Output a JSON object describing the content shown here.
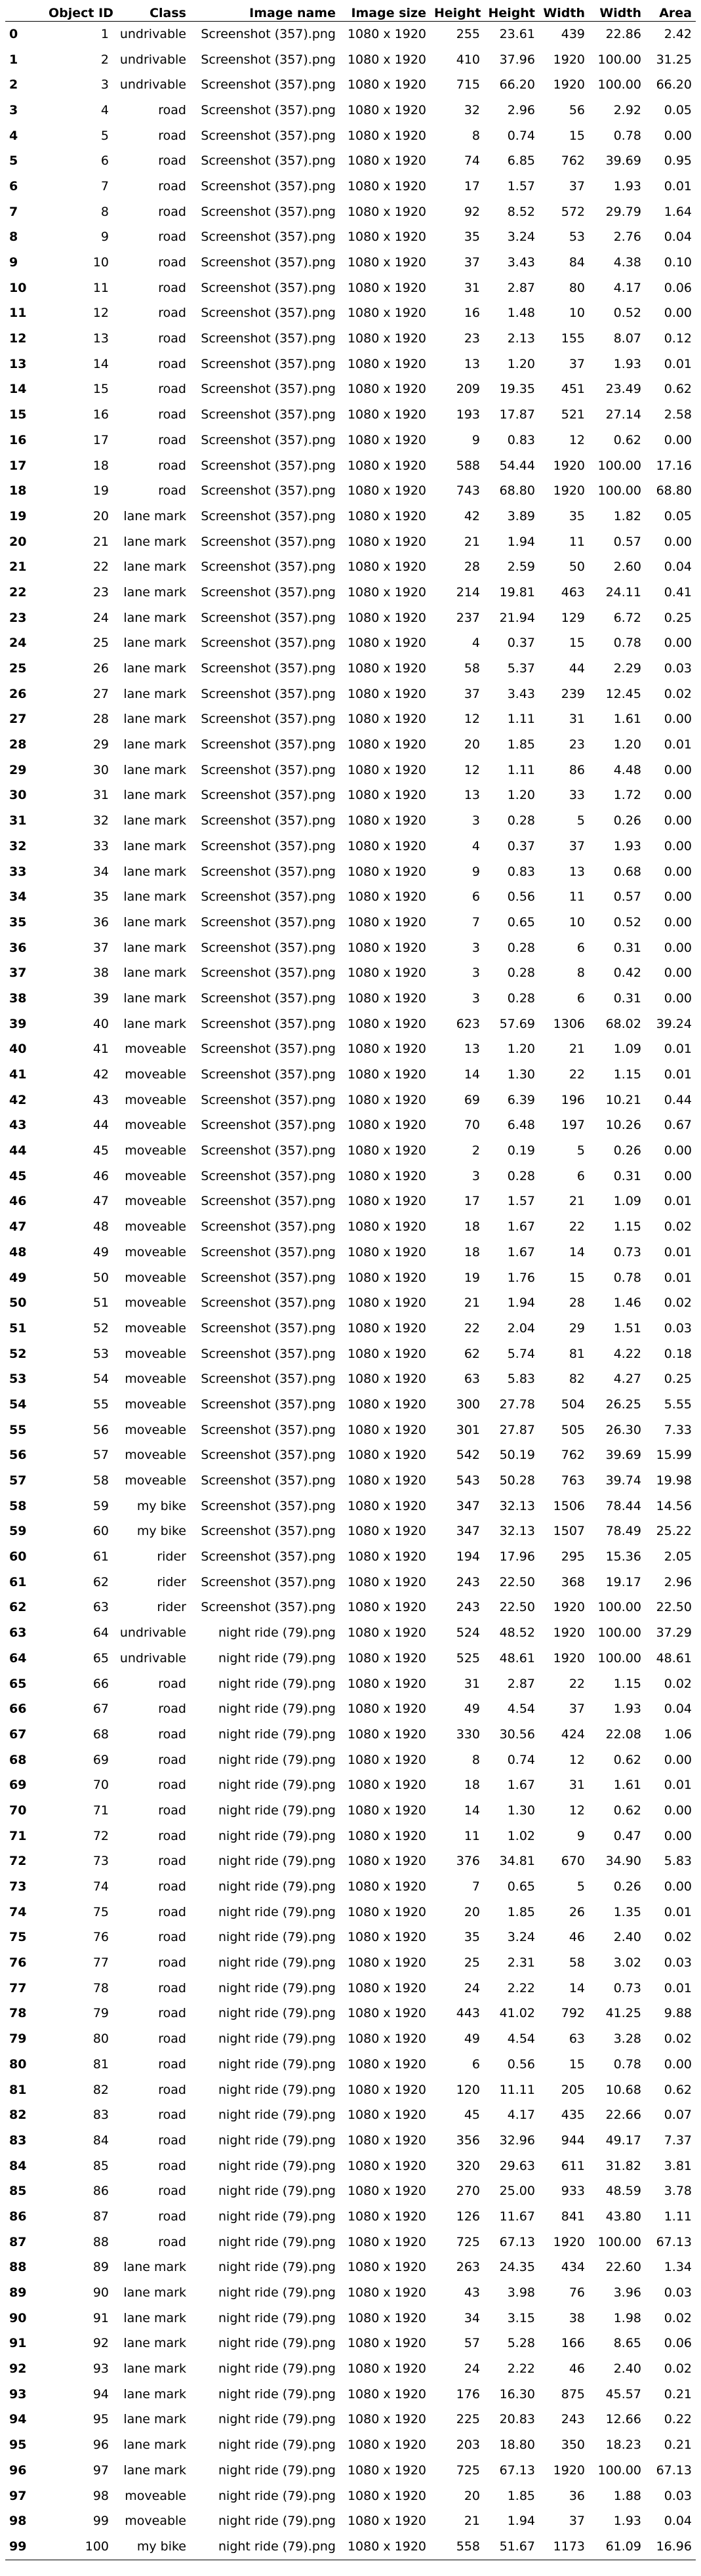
{
  "table": {
    "columns": [
      "",
      "Object ID",
      "Class",
      "Image name",
      "Image size",
      "Height",
      "Height",
      "Width",
      "Width",
      "Area"
    ],
    "rows": [
      [
        "0",
        "1",
        "undrivable",
        "Screenshot (357).png",
        "1080 x 1920",
        "255",
        "23.61",
        "439",
        "22.86",
        "2.42"
      ],
      [
        "1",
        "2",
        "undrivable",
        "Screenshot (357).png",
        "1080 x 1920",
        "410",
        "37.96",
        "1920",
        "100.00",
        "31.25"
      ],
      [
        "2",
        "3",
        "undrivable",
        "Screenshot (357).png",
        "1080 x 1920",
        "715",
        "66.20",
        "1920",
        "100.00",
        "66.20"
      ],
      [
        "3",
        "4",
        "road",
        "Screenshot (357).png",
        "1080 x 1920",
        "32",
        "2.96",
        "56",
        "2.92",
        "0.05"
      ],
      [
        "4",
        "5",
        "road",
        "Screenshot (357).png",
        "1080 x 1920",
        "8",
        "0.74",
        "15",
        "0.78",
        "0.00"
      ],
      [
        "5",
        "6",
        "road",
        "Screenshot (357).png",
        "1080 x 1920",
        "74",
        "6.85",
        "762",
        "39.69",
        "0.95"
      ],
      [
        "6",
        "7",
        "road",
        "Screenshot (357).png",
        "1080 x 1920",
        "17",
        "1.57",
        "37",
        "1.93",
        "0.01"
      ],
      [
        "7",
        "8",
        "road",
        "Screenshot (357).png",
        "1080 x 1920",
        "92",
        "8.52",
        "572",
        "29.79",
        "1.64"
      ],
      [
        "8",
        "9",
        "road",
        "Screenshot (357).png",
        "1080 x 1920",
        "35",
        "3.24",
        "53",
        "2.76",
        "0.04"
      ],
      [
        "9",
        "10",
        "road",
        "Screenshot (357).png",
        "1080 x 1920",
        "37",
        "3.43",
        "84",
        "4.38",
        "0.10"
      ],
      [
        "10",
        "11",
        "road",
        "Screenshot (357).png",
        "1080 x 1920",
        "31",
        "2.87",
        "80",
        "4.17",
        "0.06"
      ],
      [
        "11",
        "12",
        "road",
        "Screenshot (357).png",
        "1080 x 1920",
        "16",
        "1.48",
        "10",
        "0.52",
        "0.00"
      ],
      [
        "12",
        "13",
        "road",
        "Screenshot (357).png",
        "1080 x 1920",
        "23",
        "2.13",
        "155",
        "8.07",
        "0.12"
      ],
      [
        "13",
        "14",
        "road",
        "Screenshot (357).png",
        "1080 x 1920",
        "13",
        "1.20",
        "37",
        "1.93",
        "0.01"
      ],
      [
        "14",
        "15",
        "road",
        "Screenshot (357).png",
        "1080 x 1920",
        "209",
        "19.35",
        "451",
        "23.49",
        "0.62"
      ],
      [
        "15",
        "16",
        "road",
        "Screenshot (357).png",
        "1080 x 1920",
        "193",
        "17.87",
        "521",
        "27.14",
        "2.58"
      ],
      [
        "16",
        "17",
        "road",
        "Screenshot (357).png",
        "1080 x 1920",
        "9",
        "0.83",
        "12",
        "0.62",
        "0.00"
      ],
      [
        "17",
        "18",
        "road",
        "Screenshot (357).png",
        "1080 x 1920",
        "588",
        "54.44",
        "1920",
        "100.00",
        "17.16"
      ],
      [
        "18",
        "19",
        "road",
        "Screenshot (357).png",
        "1080 x 1920",
        "743",
        "68.80",
        "1920",
        "100.00",
        "68.80"
      ],
      [
        "19",
        "20",
        "lane mark",
        "Screenshot (357).png",
        "1080 x 1920",
        "42",
        "3.89",
        "35",
        "1.82",
        "0.05"
      ],
      [
        "20",
        "21",
        "lane mark",
        "Screenshot (357).png",
        "1080 x 1920",
        "21",
        "1.94",
        "11",
        "0.57",
        "0.00"
      ],
      [
        "21",
        "22",
        "lane mark",
        "Screenshot (357).png",
        "1080 x 1920",
        "28",
        "2.59",
        "50",
        "2.60",
        "0.04"
      ],
      [
        "22",
        "23",
        "lane mark",
        "Screenshot (357).png",
        "1080 x 1920",
        "214",
        "19.81",
        "463",
        "24.11",
        "0.41"
      ],
      [
        "23",
        "24",
        "lane mark",
        "Screenshot (357).png",
        "1080 x 1920",
        "237",
        "21.94",
        "129",
        "6.72",
        "0.25"
      ],
      [
        "24",
        "25",
        "lane mark",
        "Screenshot (357).png",
        "1080 x 1920",
        "4",
        "0.37",
        "15",
        "0.78",
        "0.00"
      ],
      [
        "25",
        "26",
        "lane mark",
        "Screenshot (357).png",
        "1080 x 1920",
        "58",
        "5.37",
        "44",
        "2.29",
        "0.03"
      ],
      [
        "26",
        "27",
        "lane mark",
        "Screenshot (357).png",
        "1080 x 1920",
        "37",
        "3.43",
        "239",
        "12.45",
        "0.02"
      ],
      [
        "27",
        "28",
        "lane mark",
        "Screenshot (357).png",
        "1080 x 1920",
        "12",
        "1.11",
        "31",
        "1.61",
        "0.00"
      ],
      [
        "28",
        "29",
        "lane mark",
        "Screenshot (357).png",
        "1080 x 1920",
        "20",
        "1.85",
        "23",
        "1.20",
        "0.01"
      ],
      [
        "29",
        "30",
        "lane mark",
        "Screenshot (357).png",
        "1080 x 1920",
        "12",
        "1.11",
        "86",
        "4.48",
        "0.00"
      ],
      [
        "30",
        "31",
        "lane mark",
        "Screenshot (357).png",
        "1080 x 1920",
        "13",
        "1.20",
        "33",
        "1.72",
        "0.00"
      ],
      [
        "31",
        "32",
        "lane mark",
        "Screenshot (357).png",
        "1080 x 1920",
        "3",
        "0.28",
        "5",
        "0.26",
        "0.00"
      ],
      [
        "32",
        "33",
        "lane mark",
        "Screenshot (357).png",
        "1080 x 1920",
        "4",
        "0.37",
        "37",
        "1.93",
        "0.00"
      ],
      [
        "33",
        "34",
        "lane mark",
        "Screenshot (357).png",
        "1080 x 1920",
        "9",
        "0.83",
        "13",
        "0.68",
        "0.00"
      ],
      [
        "34",
        "35",
        "lane mark",
        "Screenshot (357).png",
        "1080 x 1920",
        "6",
        "0.56",
        "11",
        "0.57",
        "0.00"
      ],
      [
        "35",
        "36",
        "lane mark",
        "Screenshot (357).png",
        "1080 x 1920",
        "7",
        "0.65",
        "10",
        "0.52",
        "0.00"
      ],
      [
        "36",
        "37",
        "lane mark",
        "Screenshot (357).png",
        "1080 x 1920",
        "3",
        "0.28",
        "6",
        "0.31",
        "0.00"
      ],
      [
        "37",
        "38",
        "lane mark",
        "Screenshot (357).png",
        "1080 x 1920",
        "3",
        "0.28",
        "8",
        "0.42",
        "0.00"
      ],
      [
        "38",
        "39",
        "lane mark",
        "Screenshot (357).png",
        "1080 x 1920",
        "3",
        "0.28",
        "6",
        "0.31",
        "0.00"
      ],
      [
        "39",
        "40",
        "lane mark",
        "Screenshot (357).png",
        "1080 x 1920",
        "623",
        "57.69",
        "1306",
        "68.02",
        "39.24"
      ],
      [
        "40",
        "41",
        "moveable",
        "Screenshot (357).png",
        "1080 x 1920",
        "13",
        "1.20",
        "21",
        "1.09",
        "0.01"
      ],
      [
        "41",
        "42",
        "moveable",
        "Screenshot (357).png",
        "1080 x 1920",
        "14",
        "1.30",
        "22",
        "1.15",
        "0.01"
      ],
      [
        "42",
        "43",
        "moveable",
        "Screenshot (357).png",
        "1080 x 1920",
        "69",
        "6.39",
        "196",
        "10.21",
        "0.44"
      ],
      [
        "43",
        "44",
        "moveable",
        "Screenshot (357).png",
        "1080 x 1920",
        "70",
        "6.48",
        "197",
        "10.26",
        "0.67"
      ],
      [
        "44",
        "45",
        "moveable",
        "Screenshot (357).png",
        "1080 x 1920",
        "2",
        "0.19",
        "5",
        "0.26",
        "0.00"
      ],
      [
        "45",
        "46",
        "moveable",
        "Screenshot (357).png",
        "1080 x 1920",
        "3",
        "0.28",
        "6",
        "0.31",
        "0.00"
      ],
      [
        "46",
        "47",
        "moveable",
        "Screenshot (357).png",
        "1080 x 1920",
        "17",
        "1.57",
        "21",
        "1.09",
        "0.01"
      ],
      [
        "47",
        "48",
        "moveable",
        "Screenshot (357).png",
        "1080 x 1920",
        "18",
        "1.67",
        "22",
        "1.15",
        "0.02"
      ],
      [
        "48",
        "49",
        "moveable",
        "Screenshot (357).png",
        "1080 x 1920",
        "18",
        "1.67",
        "14",
        "0.73",
        "0.01"
      ],
      [
        "49",
        "50",
        "moveable",
        "Screenshot (357).png",
        "1080 x 1920",
        "19",
        "1.76",
        "15",
        "0.78",
        "0.01"
      ],
      [
        "50",
        "51",
        "moveable",
        "Screenshot (357).png",
        "1080 x 1920",
        "21",
        "1.94",
        "28",
        "1.46",
        "0.02"
      ],
      [
        "51",
        "52",
        "moveable",
        "Screenshot (357).png",
        "1080 x 1920",
        "22",
        "2.04",
        "29",
        "1.51",
        "0.03"
      ],
      [
        "52",
        "53",
        "moveable",
        "Screenshot (357).png",
        "1080 x 1920",
        "62",
        "5.74",
        "81",
        "4.22",
        "0.18"
      ],
      [
        "53",
        "54",
        "moveable",
        "Screenshot (357).png",
        "1080 x 1920",
        "63",
        "5.83",
        "82",
        "4.27",
        "0.25"
      ],
      [
        "54",
        "55",
        "moveable",
        "Screenshot (357).png",
        "1080 x 1920",
        "300",
        "27.78",
        "504",
        "26.25",
        "5.55"
      ],
      [
        "55",
        "56",
        "moveable",
        "Screenshot (357).png",
        "1080 x 1920",
        "301",
        "27.87",
        "505",
        "26.30",
        "7.33"
      ],
      [
        "56",
        "57",
        "moveable",
        "Screenshot (357).png",
        "1080 x 1920",
        "542",
        "50.19",
        "762",
        "39.69",
        "15.99"
      ],
      [
        "57",
        "58",
        "moveable",
        "Screenshot (357).png",
        "1080 x 1920",
        "543",
        "50.28",
        "763",
        "39.74",
        "19.98"
      ],
      [
        "58",
        "59",
        "my bike",
        "Screenshot (357).png",
        "1080 x 1920",
        "347",
        "32.13",
        "1506",
        "78.44",
        "14.56"
      ],
      [
        "59",
        "60",
        "my bike",
        "Screenshot (357).png",
        "1080 x 1920",
        "347",
        "32.13",
        "1507",
        "78.49",
        "25.22"
      ],
      [
        "60",
        "61",
        "rider",
        "Screenshot (357).png",
        "1080 x 1920",
        "194",
        "17.96",
        "295",
        "15.36",
        "2.05"
      ],
      [
        "61",
        "62",
        "rider",
        "Screenshot (357).png",
        "1080 x 1920",
        "243",
        "22.50",
        "368",
        "19.17",
        "2.96"
      ],
      [
        "62",
        "63",
        "rider",
        "Screenshot (357).png",
        "1080 x 1920",
        "243",
        "22.50",
        "1920",
        "100.00",
        "22.50"
      ],
      [
        "63",
        "64",
        "undrivable",
        "night ride (79).png",
        "1080 x 1920",
        "524",
        "48.52",
        "1920",
        "100.00",
        "37.29"
      ],
      [
        "64",
        "65",
        "undrivable",
        "night ride (79).png",
        "1080 x 1920",
        "525",
        "48.61",
        "1920",
        "100.00",
        "48.61"
      ],
      [
        "65",
        "66",
        "road",
        "night ride (79).png",
        "1080 x 1920",
        "31",
        "2.87",
        "22",
        "1.15",
        "0.02"
      ],
      [
        "66",
        "67",
        "road",
        "night ride (79).png",
        "1080 x 1920",
        "49",
        "4.54",
        "37",
        "1.93",
        "0.04"
      ],
      [
        "67",
        "68",
        "road",
        "night ride (79).png",
        "1080 x 1920",
        "330",
        "30.56",
        "424",
        "22.08",
        "1.06"
      ],
      [
        "68",
        "69",
        "road",
        "night ride (79).png",
        "1080 x 1920",
        "8",
        "0.74",
        "12",
        "0.62",
        "0.00"
      ],
      [
        "69",
        "70",
        "road",
        "night ride (79).png",
        "1080 x 1920",
        "18",
        "1.67",
        "31",
        "1.61",
        "0.01"
      ],
      [
        "70",
        "71",
        "road",
        "night ride (79).png",
        "1080 x 1920",
        "14",
        "1.30",
        "12",
        "0.62",
        "0.00"
      ],
      [
        "71",
        "72",
        "road",
        "night ride (79).png",
        "1080 x 1920",
        "11",
        "1.02",
        "9",
        "0.47",
        "0.00"
      ],
      [
        "72",
        "73",
        "road",
        "night ride (79).png",
        "1080 x 1920",
        "376",
        "34.81",
        "670",
        "34.90",
        "5.83"
      ],
      [
        "73",
        "74",
        "road",
        "night ride (79).png",
        "1080 x 1920",
        "7",
        "0.65",
        "5",
        "0.26",
        "0.00"
      ],
      [
        "74",
        "75",
        "road",
        "night ride (79).png",
        "1080 x 1920",
        "20",
        "1.85",
        "26",
        "1.35",
        "0.01"
      ],
      [
        "75",
        "76",
        "road",
        "night ride (79).png",
        "1080 x 1920",
        "35",
        "3.24",
        "46",
        "2.40",
        "0.02"
      ],
      [
        "76",
        "77",
        "road",
        "night ride (79).png",
        "1080 x 1920",
        "25",
        "2.31",
        "58",
        "3.02",
        "0.03"
      ],
      [
        "77",
        "78",
        "road",
        "night ride (79).png",
        "1080 x 1920",
        "24",
        "2.22",
        "14",
        "0.73",
        "0.01"
      ],
      [
        "78",
        "79",
        "road",
        "night ride (79).png",
        "1080 x 1920",
        "443",
        "41.02",
        "792",
        "41.25",
        "9.88"
      ],
      [
        "79",
        "80",
        "road",
        "night ride (79).png",
        "1080 x 1920",
        "49",
        "4.54",
        "63",
        "3.28",
        "0.02"
      ],
      [
        "80",
        "81",
        "road",
        "night ride (79).png",
        "1080 x 1920",
        "6",
        "0.56",
        "15",
        "0.78",
        "0.00"
      ],
      [
        "81",
        "82",
        "road",
        "night ride (79).png",
        "1080 x 1920",
        "120",
        "11.11",
        "205",
        "10.68",
        "0.62"
      ],
      [
        "82",
        "83",
        "road",
        "night ride (79).png",
        "1080 x 1920",
        "45",
        "4.17",
        "435",
        "22.66",
        "0.07"
      ],
      [
        "83",
        "84",
        "road",
        "night ride (79).png",
        "1080 x 1920",
        "356",
        "32.96",
        "944",
        "49.17",
        "7.37"
      ],
      [
        "84",
        "85",
        "road",
        "night ride (79).png",
        "1080 x 1920",
        "320",
        "29.63",
        "611",
        "31.82",
        "3.81"
      ],
      [
        "85",
        "86",
        "road",
        "night ride (79).png",
        "1080 x 1920",
        "270",
        "25.00",
        "933",
        "48.59",
        "3.78"
      ],
      [
        "86",
        "87",
        "road",
        "night ride (79).png",
        "1080 x 1920",
        "126",
        "11.67",
        "841",
        "43.80",
        "1.11"
      ],
      [
        "87",
        "88",
        "road",
        "night ride (79).png",
        "1080 x 1920",
        "725",
        "67.13",
        "1920",
        "100.00",
        "67.13"
      ],
      [
        "88",
        "89",
        "lane mark",
        "night ride (79).png",
        "1080 x 1920",
        "263",
        "24.35",
        "434",
        "22.60",
        "1.34"
      ],
      [
        "89",
        "90",
        "lane mark",
        "night ride (79).png",
        "1080 x 1920",
        "43",
        "3.98",
        "76",
        "3.96",
        "0.03"
      ],
      [
        "90",
        "91",
        "lane mark",
        "night ride (79).png",
        "1080 x 1920",
        "34",
        "3.15",
        "38",
        "1.98",
        "0.02"
      ],
      [
        "91",
        "92",
        "lane mark",
        "night ride (79).png",
        "1080 x 1920",
        "57",
        "5.28",
        "166",
        "8.65",
        "0.06"
      ],
      [
        "92",
        "93",
        "lane mark",
        "night ride (79).png",
        "1080 x 1920",
        "24",
        "2.22",
        "46",
        "2.40",
        "0.02"
      ],
      [
        "93",
        "94",
        "lane mark",
        "night ride (79).png",
        "1080 x 1920",
        "176",
        "16.30",
        "875",
        "45.57",
        "0.21"
      ],
      [
        "94",
        "95",
        "lane mark",
        "night ride (79).png",
        "1080 x 1920",
        "225",
        "20.83",
        "243",
        "12.66",
        "0.22"
      ],
      [
        "95",
        "96",
        "lane mark",
        "night ride (79).png",
        "1080 x 1920",
        "203",
        "18.80",
        "350",
        "18.23",
        "0.21"
      ],
      [
        "96",
        "97",
        "lane mark",
        "night ride (79).png",
        "1080 x 1920",
        "725",
        "67.13",
        "1920",
        "100.00",
        "67.13"
      ],
      [
        "97",
        "98",
        "moveable",
        "night ride (79).png",
        "1080 x 1920",
        "20",
        "1.85",
        "36",
        "1.88",
        "0.03"
      ],
      [
        "98",
        "99",
        "moveable",
        "night ride (79).png",
        "1080 x 1920",
        "21",
        "1.94",
        "37",
        "1.93",
        "0.04"
      ],
      [
        "99",
        "100",
        "my bike",
        "night ride (79).png",
        "1080 x 1920",
        "558",
        "51.67",
        "1173",
        "61.09",
        "16.96"
      ]
    ]
  }
}
